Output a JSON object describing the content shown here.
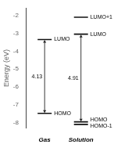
{
  "chart_data": {
    "type": "energy_levels",
    "ylabel": "Energy (eV)",
    "categories": [
      "Gas",
      "Solution"
    ],
    "series": [
      {
        "name": "LUMO+1",
        "color": "#111111",
        "values": [
          null,
          -2.1
        ]
      },
      {
        "name": "LUMO",
        "color": "#111111",
        "values": [
          -3.35,
          -3.05
        ]
      },
      {
        "name": "HOMO",
        "color": "#111111",
        "values": [
          -7.48,
          -7.96
        ]
      },
      {
        "name": "HOMO-1",
        "color": "#111111",
        "values": [
          null,
          -8.1
        ]
      }
    ],
    "annotations": [
      {
        "category": "Gas",
        "from": -7.48,
        "to": -3.35,
        "text": "4.13",
        "color": "#222222"
      },
      {
        "category": "Solution",
        "from": -7.96,
        "to": -3.05,
        "text": "4.91",
        "color": "#222222"
      }
    ],
    "ylim": [
      -8.3,
      -1.6
    ],
    "yticks": [
      -8,
      -7,
      -6,
      -5,
      -4,
      -3,
      -2
    ],
    "grid": false
  }
}
